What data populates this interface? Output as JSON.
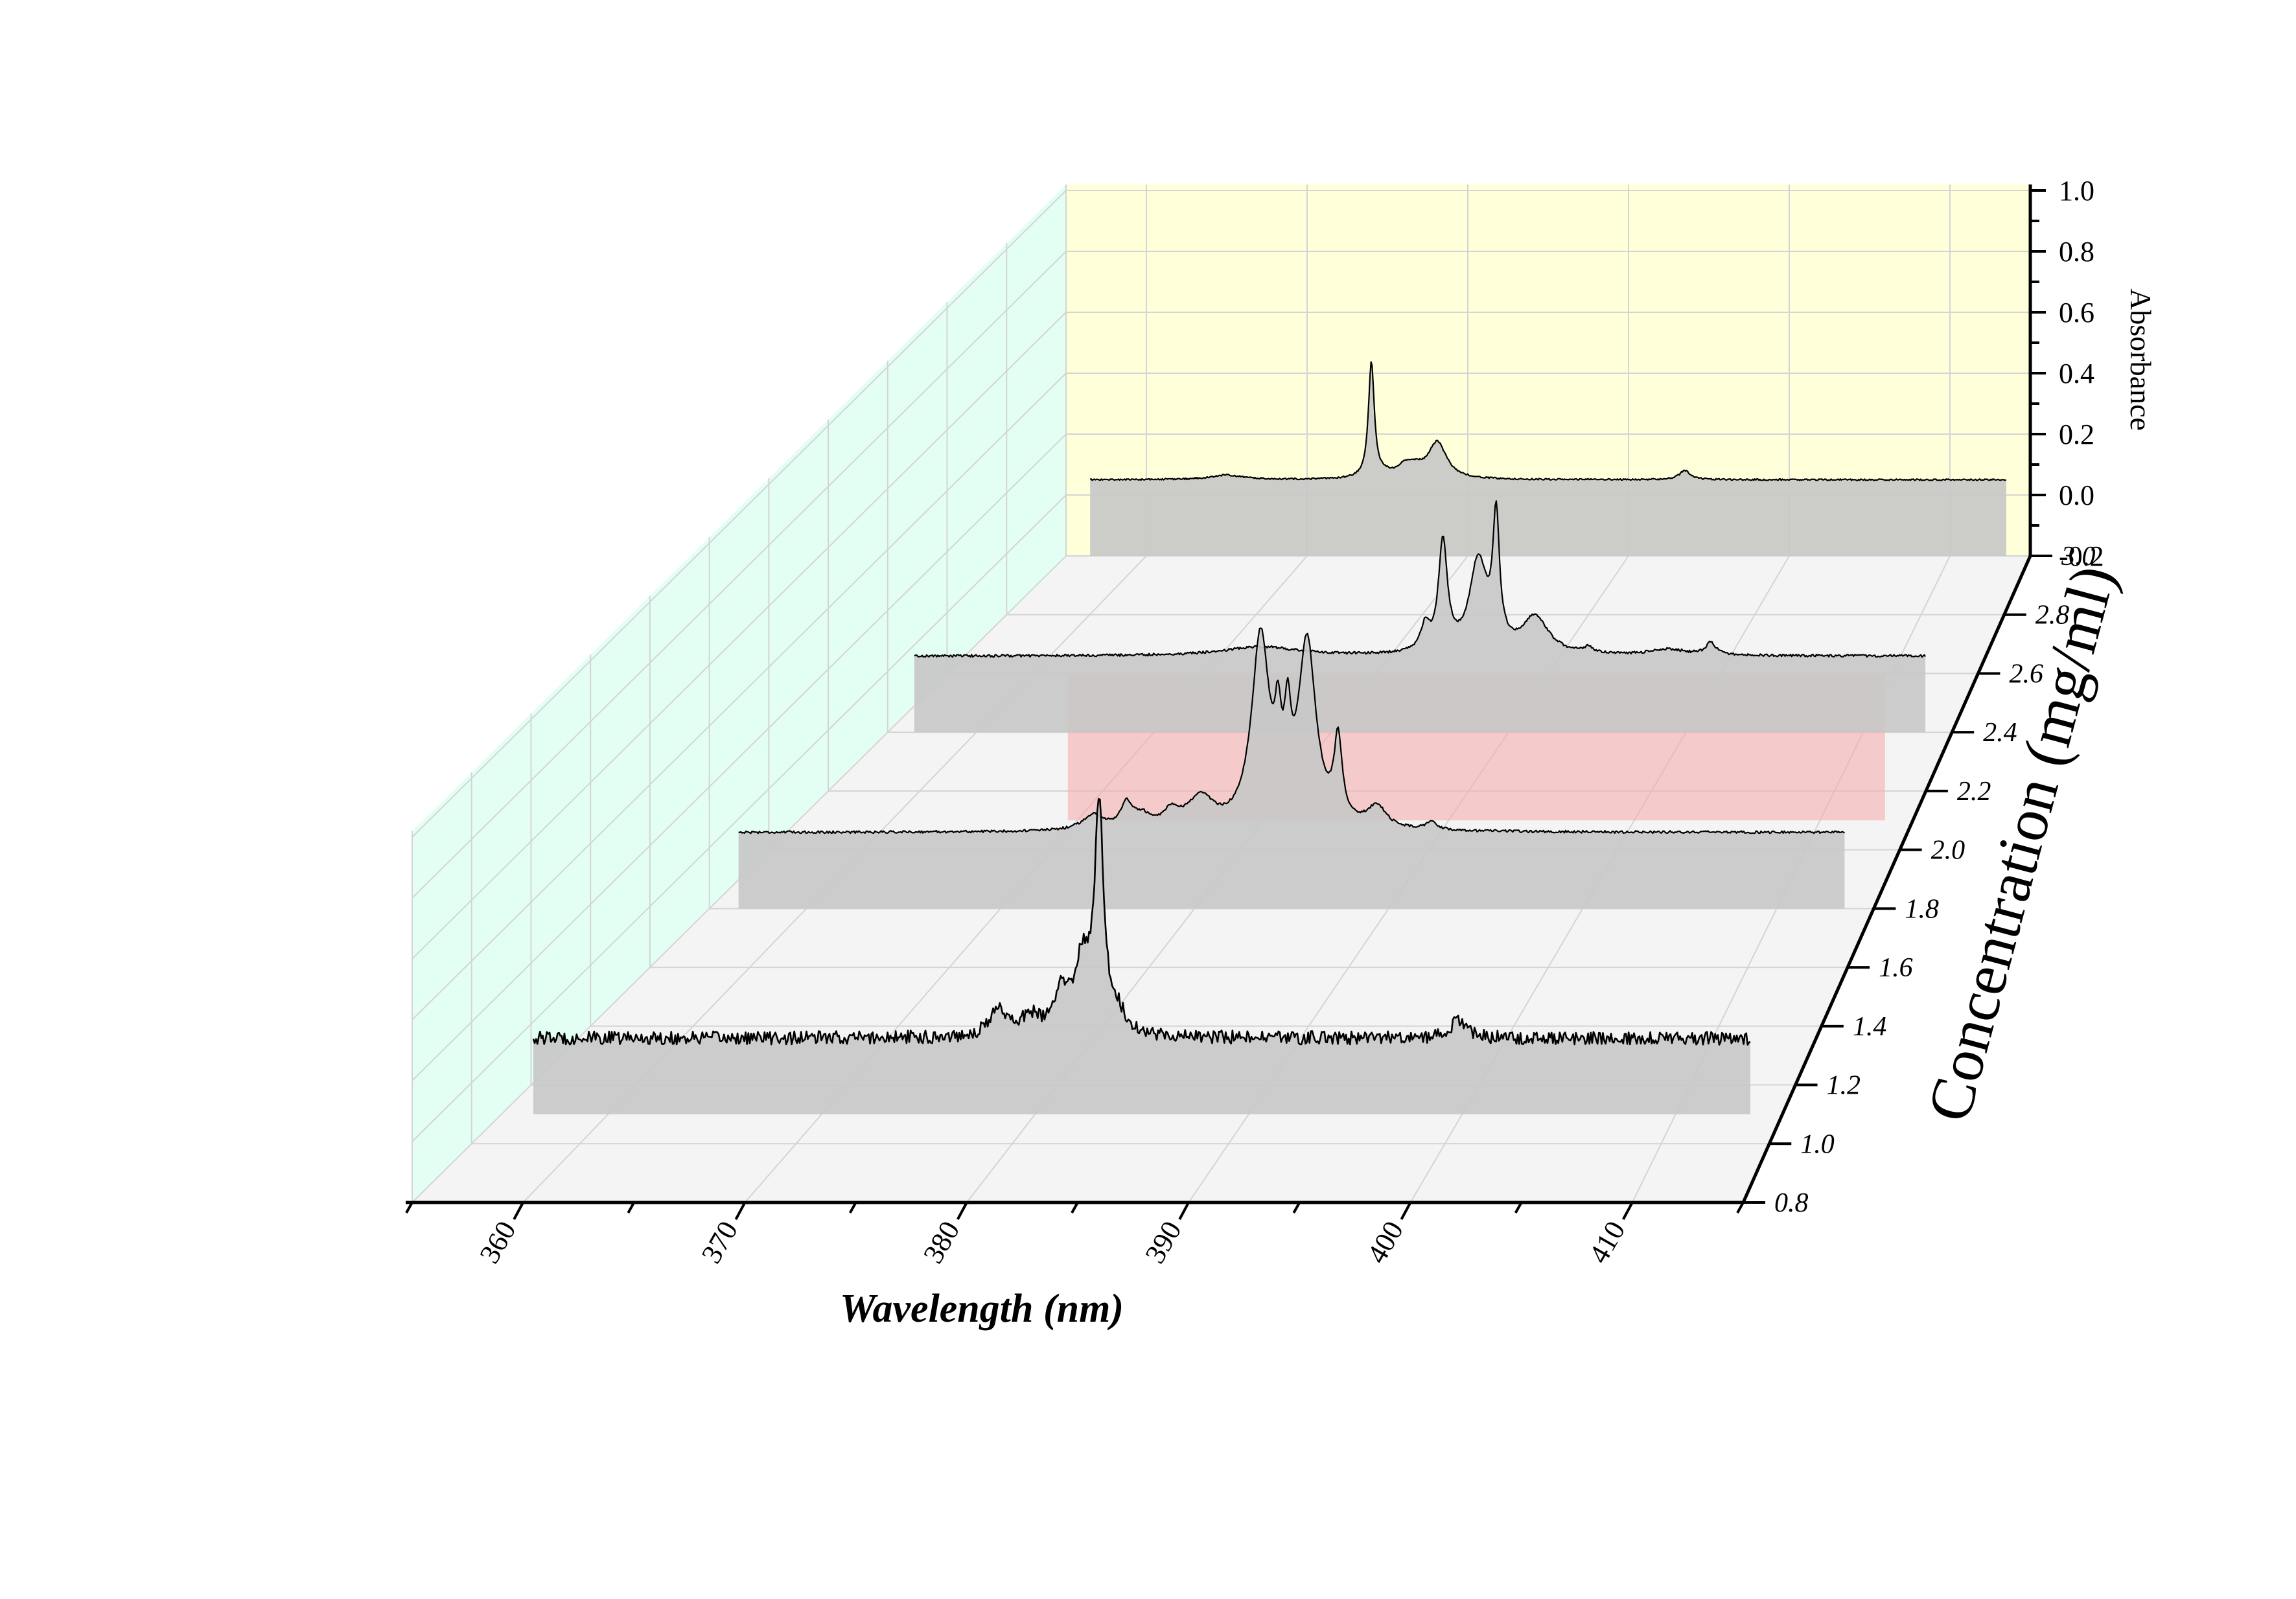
{
  "chart_data": {
    "type": "line",
    "subtype": "3d-waterfall",
    "xlabel": "Wavelength (nm)",
    "ylabel": "Absorbance",
    "zlabel": "Concentration (mg/ml)",
    "xlim": [
      355,
      415
    ],
    "ylim": [
      -0.2,
      1.0
    ],
    "zlim": [
      0.8,
      3.0
    ],
    "x_ticks": [
      360,
      370,
      380,
      390,
      400,
      410
    ],
    "y_ticks": [
      -0.2,
      0.0,
      0.2,
      0.4,
      0.6,
      0.8,
      1.0
    ],
    "y_tick_labels": [
      "-0.2",
      "0.0",
      "0.2",
      "0.4",
      "0.6",
      "0.8",
      "1.0"
    ],
    "z_ticks": [
      0.8,
      1.0,
      1.2,
      1.4,
      1.6,
      1.8,
      2.0,
      2.2,
      2.4,
      2.6,
      2.8,
      3.0
    ],
    "z_tick_labels": [
      "0.8",
      "1.0",
      "1.2",
      "1.4",
      "1.6",
      "1.8",
      "2.0",
      "2.2",
      "2.4",
      "2.6",
      "2.8",
      "3.0"
    ],
    "grid": true,
    "colors": {
      "line": "#000000",
      "fill": "#c8c8c8",
      "back_wall": "#ffffd9",
      "side_wall": "#e3fff4",
      "floor": "#f4f4f4",
      "mid_plane": "#f5a8a8"
    },
    "series": [
      {
        "z": 1.1,
        "baseline": 0.05,
        "noise": 0.022,
        "peaks": [
          {
            "x": 378.3,
            "h": 0.09,
            "w": 0.5
          },
          {
            "x": 379.8,
            "h": 0.06,
            "w": 0.5
          },
          {
            "x": 381.2,
            "h": 0.12,
            "w": 0.35
          },
          {
            "x": 382.2,
            "h": 0.23,
            "w": 0.5
          },
          {
            "x": 383.0,
            "h": 0.72,
            "w": 0.25
          },
          {
            "x": 383.8,
            "h": 0.06,
            "w": 0.5
          },
          {
            "x": 399.8,
            "h": 0.06,
            "w": 0.4
          }
        ]
      },
      {
        "z": 1.8,
        "baseline": 0.05,
        "noise": 0.004,
        "peaks": [
          {
            "x": 374.8,
            "h": 0.05,
            "w": 0.7
          },
          {
            "x": 376.5,
            "h": 0.08,
            "w": 0.35
          },
          {
            "x": 377.3,
            "h": 0.04,
            "w": 0.5
          },
          {
            "x": 378.8,
            "h": 0.05,
            "w": 0.5
          },
          {
            "x": 380.3,
            "h": 0.1,
            "w": 0.8
          },
          {
            "x": 383.4,
            "h": 0.62,
            "w": 0.55
          },
          {
            "x": 384.3,
            "h": 0.22,
            "w": 0.2
          },
          {
            "x": 384.8,
            "h": 0.25,
            "w": 0.2
          },
          {
            "x": 385.8,
            "h": 0.6,
            "w": 0.55
          },
          {
            "x": 387.4,
            "h": 0.26,
            "w": 0.25
          },
          {
            "x": 389.4,
            "h": 0.07,
            "w": 0.6
          },
          {
            "x": 392.2,
            "h": 0.03,
            "w": 0.3
          }
        ]
      },
      {
        "z": 2.4,
        "baseline": 0.05,
        "noise": 0.004,
        "peaks": [
          {
            "x": 376.0,
            "h": 0.03,
            "w": 2.5
          },
          {
            "x": 385.3,
            "h": 0.08,
            "w": 0.3
          },
          {
            "x": 386.3,
            "h": 0.36,
            "w": 0.3
          },
          {
            "x": 388.3,
            "h": 0.3,
            "w": 0.6
          },
          {
            "x": 389.3,
            "h": 0.41,
            "w": 0.22
          },
          {
            "x": 391.5,
            "h": 0.12,
            "w": 0.9
          },
          {
            "x": 394.5,
            "h": 0.02,
            "w": 0.3
          },
          {
            "x": 399.0,
            "h": 0.02,
            "w": 1.2
          },
          {
            "x": 401.4,
            "h": 0.04,
            "w": 0.35
          }
        ]
      },
      {
        "z": 3.0,
        "baseline": 0.05,
        "noise": 0.0025,
        "peaks": [
          {
            "x": 365.0,
            "h": 0.015,
            "w": 1.2
          },
          {
            "x": 374.0,
            "h": 0.38,
            "w": 0.22
          },
          {
            "x": 374.9,
            "h": 0.01,
            "w": 0.5
          },
          {
            "x": 376.1,
            "h": 0.04,
            "w": 0.6
          },
          {
            "x": 376.8,
            "h": 0.02,
            "w": 0.5
          },
          {
            "x": 378.1,
            "h": 0.12,
            "w": 0.7
          },
          {
            "x": 393.5,
            "h": 0.03,
            "w": 0.4
          }
        ]
      }
    ]
  }
}
